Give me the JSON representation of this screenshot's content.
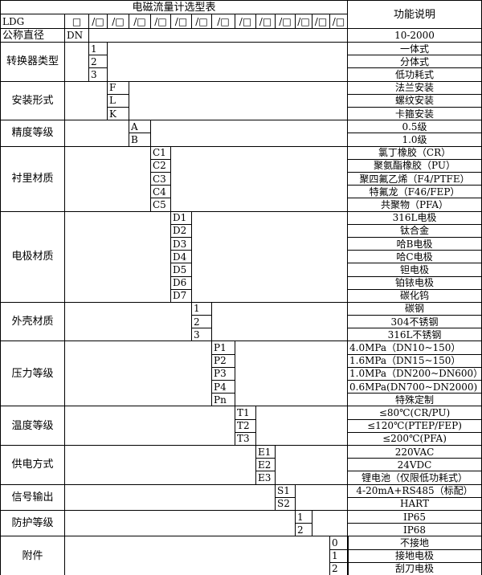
{
  "title": "电磁流量计选型表",
  "desc_header": "功能说明",
  "model": {
    "prefix": "LDG",
    "first_box": "□",
    "boxes": [
      "/□",
      "/□",
      "/□",
      "/□",
      "/□",
      "/□",
      "/□",
      "/□",
      "/□",
      "/□",
      "/□",
      "/□",
      "/□"
    ]
  },
  "nominal": {
    "label": "公称直径",
    "code": "DN",
    "desc": "10-2000"
  },
  "groups": [
    {
      "label": "转换器类型",
      "options": [
        {
          "code": "1",
          "desc": "一体式"
        },
        {
          "code": "2",
          "desc": "分体式"
        },
        {
          "code": "3",
          "desc": "低功耗式"
        }
      ]
    },
    {
      "label": "安装形式",
      "options": [
        {
          "code": "F",
          "desc": "法兰安装"
        },
        {
          "code": "L",
          "desc": "螺纹安装"
        },
        {
          "code": "K",
          "desc": "卡箍安装"
        }
      ]
    },
    {
      "label": "精度等级",
      "options": [
        {
          "code": "A",
          "desc": "0.5级"
        },
        {
          "code": "B",
          "desc": "1.0级"
        }
      ]
    },
    {
      "label": "衬里材质",
      "options": [
        {
          "code": "C1",
          "desc": "氯丁橡胶（CR）"
        },
        {
          "code": "C2",
          "desc": "聚氨酯橡胶（PU）"
        },
        {
          "code": "C3",
          "desc": "聚四氟乙烯（F4/PTFE）"
        },
        {
          "code": "C4",
          "desc": "特氟龙（F46/FEP）"
        },
        {
          "code": "C5",
          "desc": "共聚物（PFA）"
        }
      ]
    },
    {
      "label": "电极材质",
      "options": [
        {
          "code": "D1",
          "desc": "316L电极"
        },
        {
          "code": "D2",
          "desc": "钛合金"
        },
        {
          "code": "D3",
          "desc": "哈B电极"
        },
        {
          "code": "D4",
          "desc": "哈C电极"
        },
        {
          "code": "D5",
          "desc": "钽电极"
        },
        {
          "code": "D6",
          "desc": "铂铱电极"
        },
        {
          "code": "D7",
          "desc": "碳化钨"
        }
      ]
    },
    {
      "label": "外壳材质",
      "options": [
        {
          "code": "1",
          "desc": "碳钢"
        },
        {
          "code": "2",
          "desc": "304不锈钢"
        },
        {
          "code": "3",
          "desc": "316L不锈钢"
        }
      ]
    },
    {
      "label": "压力等级",
      "options": [
        {
          "code": "P1",
          "desc": "4.0MPa（DN10~150）",
          "left": true
        },
        {
          "code": "P2",
          "desc": "1.6MPa（DN15~150）",
          "left": true
        },
        {
          "code": "P3",
          "desc": "1.0MPa（DN200~DN600）",
          "left": true
        },
        {
          "code": "P4",
          "desc": "0.6MPa(DN700~DN2000)",
          "left": true
        },
        {
          "code": "Pn",
          "desc": "特殊定制"
        }
      ]
    },
    {
      "label": "温度等级",
      "options": [
        {
          "code": "T1",
          "desc": "≤80℃(CR/PU)"
        },
        {
          "code": "T2",
          "desc": "≤120℃(PTEP/FEP)"
        },
        {
          "code": "T3",
          "desc": "≤200℃(PFA)"
        }
      ]
    },
    {
      "label": "供电方式",
      "options": [
        {
          "code": "E1",
          "desc": "220VAC"
        },
        {
          "code": "E2",
          "desc": "24VDC"
        },
        {
          "code": "E3",
          "desc": "锂电池（仅限低功耗式）"
        }
      ]
    },
    {
      "label": "信号输出",
      "options": [
        {
          "code": "S1",
          "desc": "4-20mA+RS485（标配）"
        },
        {
          "code": "S2",
          "desc": "HART"
        }
      ]
    },
    {
      "label": "防护等级",
      "options": [
        {
          "code": "1",
          "desc": "IP65"
        },
        {
          "code": "2",
          "desc": "IP68"
        }
      ]
    },
    {
      "label": "附件",
      "options": [
        {
          "code": "0",
          "desc": "不接地"
        },
        {
          "code": "1",
          "desc": "接地电极"
        },
        {
          "code": "2",
          "desc": "刮刀电极"
        }
      ]
    }
  ]
}
